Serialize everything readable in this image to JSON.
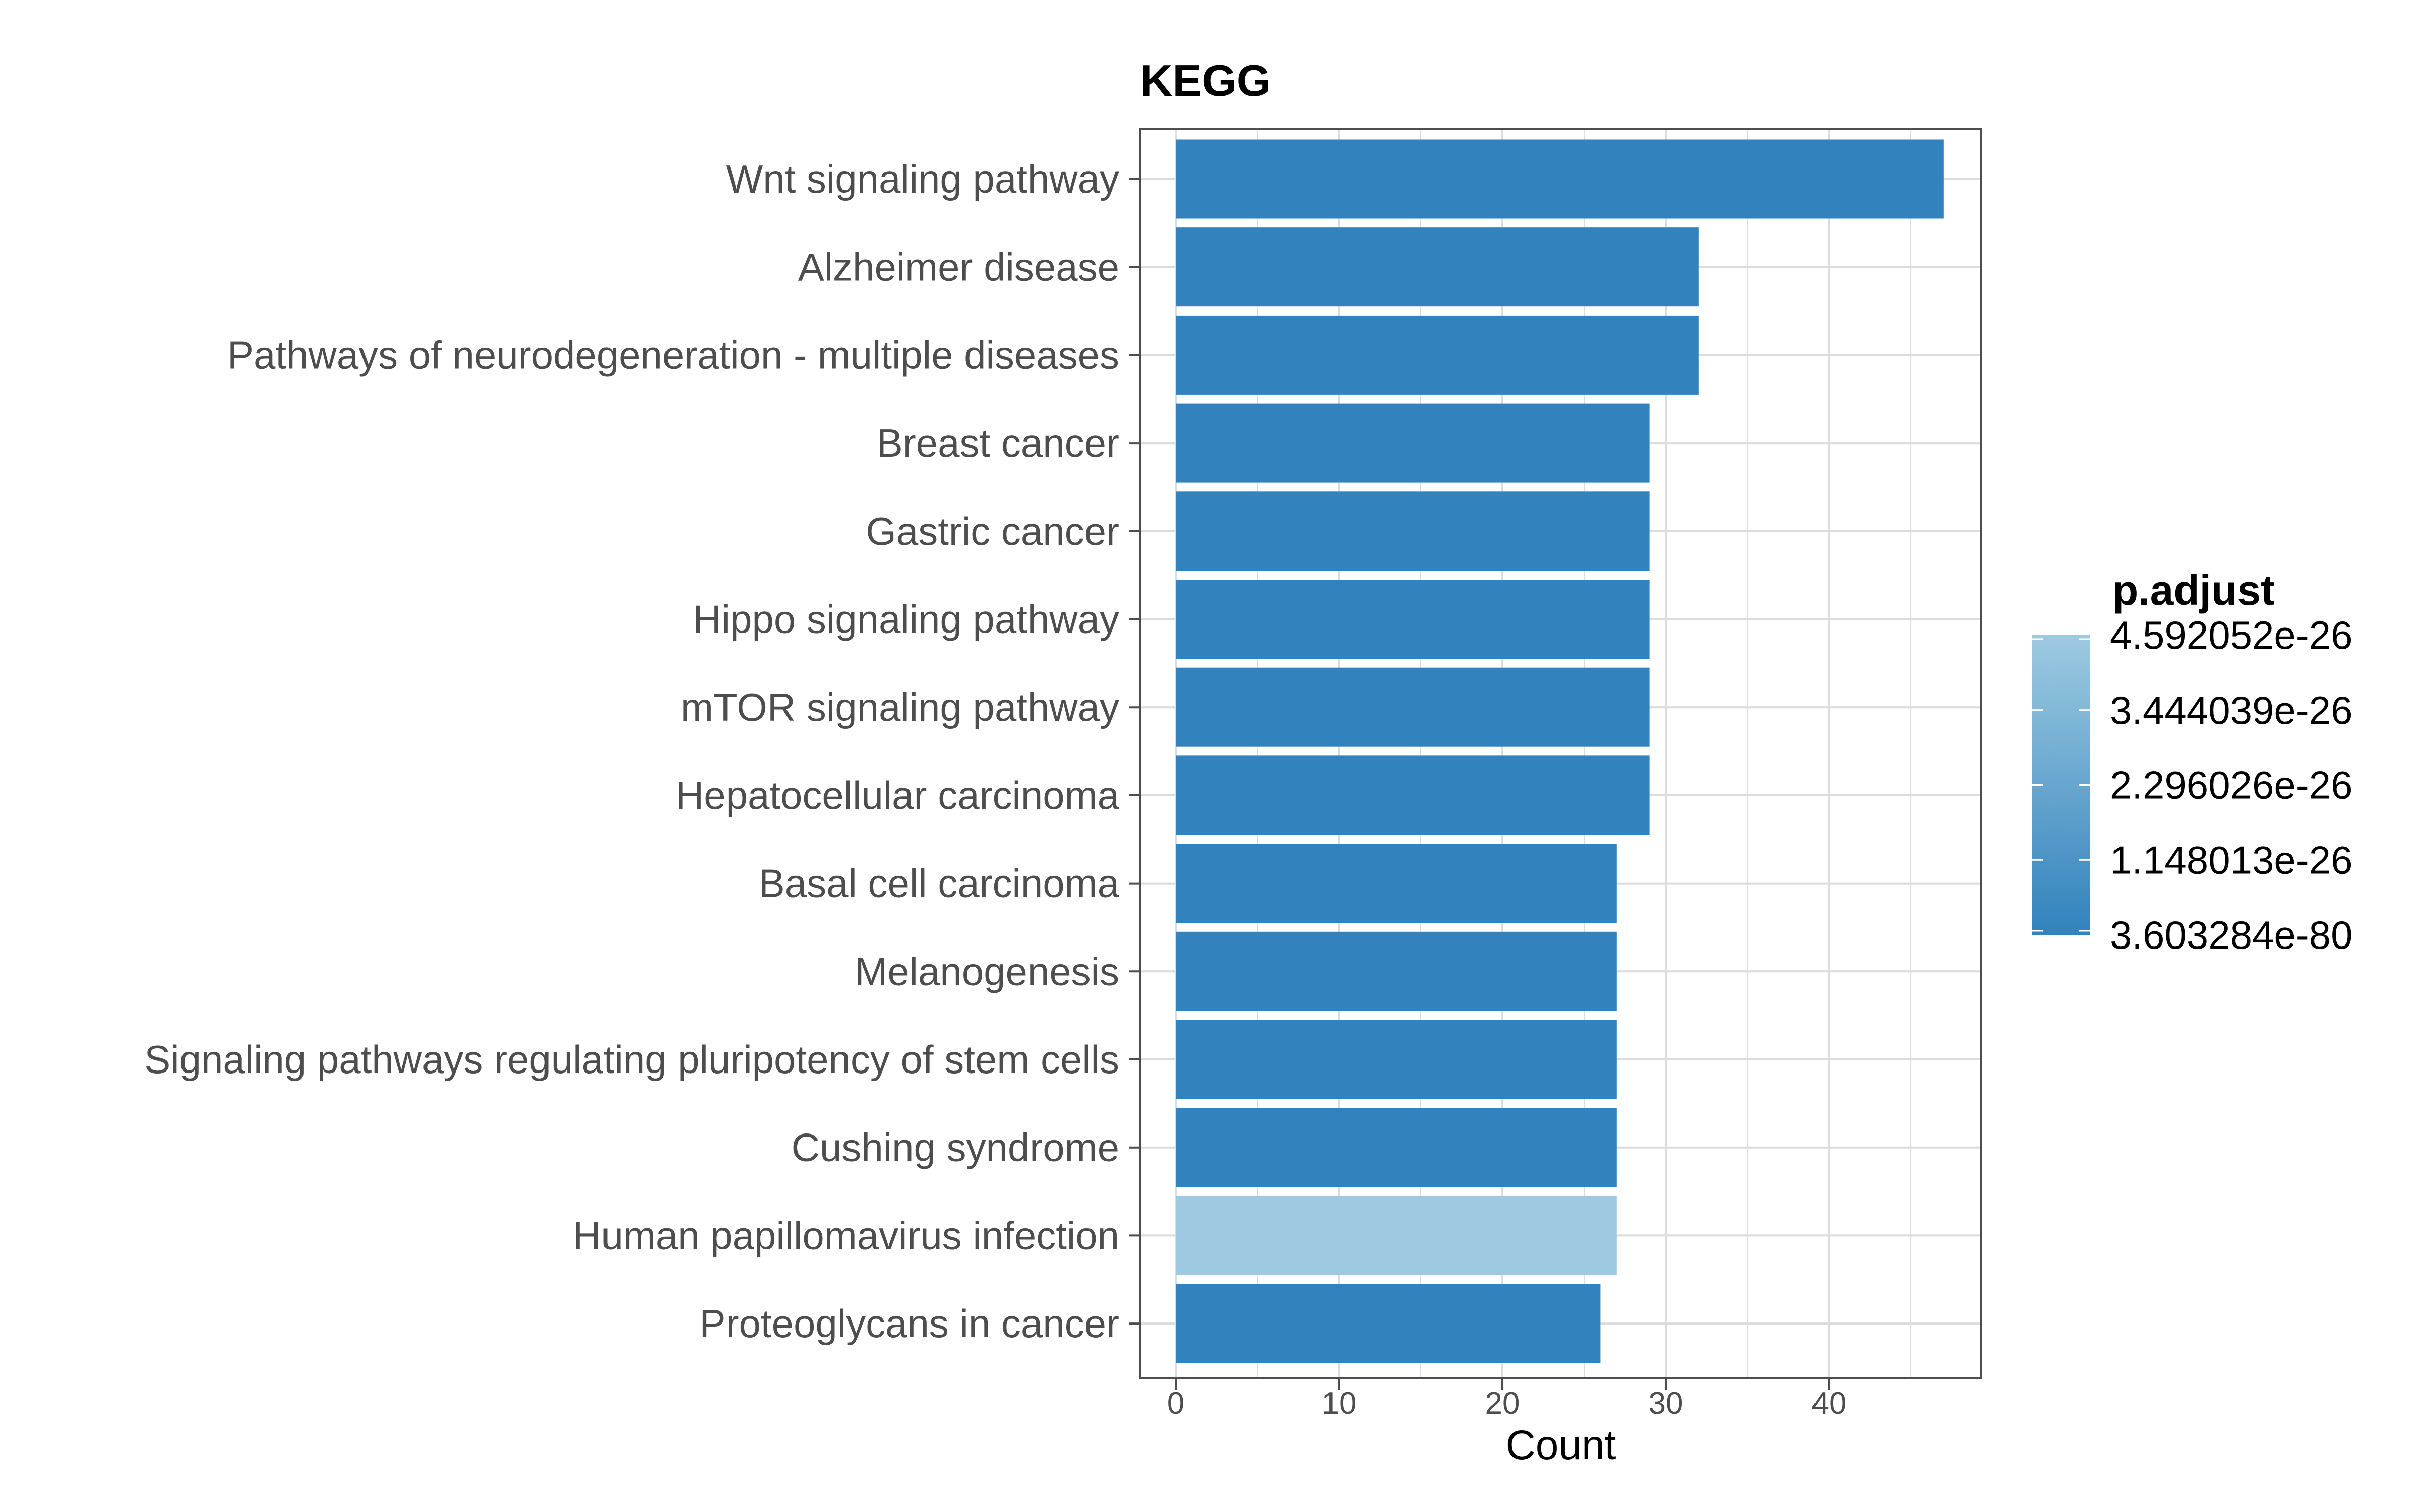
{
  "chart_data": {
    "type": "bar",
    "orientation": "horizontal",
    "title": "KEGG",
    "xlabel": "Count",
    "ylabel": "",
    "xlim": [
      0,
      49.5
    ],
    "x_ticks": [
      0,
      10,
      20,
      30,
      40
    ],
    "grid": true,
    "categories": [
      "Wnt signaling pathway",
      "Alzheimer disease",
      "Pathways of neurodegeneration - multiple diseases",
      "Breast cancer",
      "Gastric cancer",
      "Hippo signaling pathway",
      "mTOR signaling pathway",
      "Hepatocellular carcinoma",
      "Basal cell carcinoma",
      "Melanogenesis",
      "Signaling pathways regulating pluripotency of stem cells",
      "Cushing syndrome",
      "Human papillomavirus infection",
      "Proteoglycans in cancer"
    ],
    "values": [
      47,
      32,
      32,
      29,
      29,
      29,
      29,
      29,
      27,
      27,
      27,
      27,
      27,
      26
    ],
    "bar_colors": [
      "#3182bd",
      "#3182bd",
      "#3182bd",
      "#3182bd",
      "#3182bd",
      "#3182bd",
      "#3182bd",
      "#3182bd",
      "#3182bd",
      "#3182bd",
      "#3182bd",
      "#3182bd",
      "#9ecae1",
      "#3182bd"
    ],
    "legend": {
      "title": "p.adjust",
      "placement": "right",
      "labels": [
        "4.592052e-26",
        "3.444039e-26",
        "2.296026e-26",
        "1.148013e-26",
        "3.603284e-80"
      ],
      "color_low": "#3182bd",
      "color_high": "#9ecae1"
    }
  }
}
